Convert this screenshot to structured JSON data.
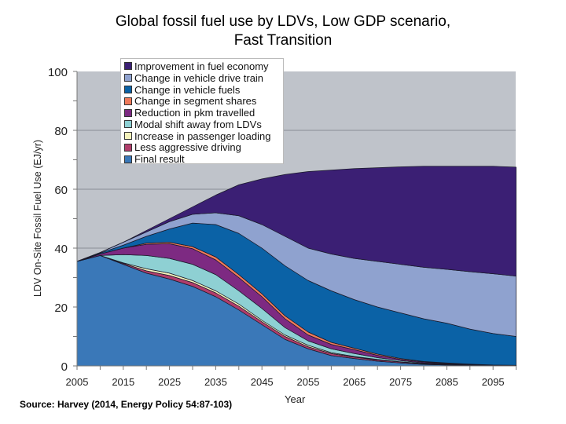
{
  "chart_data": {
    "type": "area",
    "stacked": true,
    "title": "Global fossil fuel use by LDVs, Low GDP scenario, Fast Transition",
    "title_lines": [
      "Global fossil fuel use by LDVs, Low GDP scenario,",
      "Fast Transition"
    ],
    "xlabel": "Year",
    "ylabel": "LDV On-Site Fossil Fuel Use (EJ/yr)",
    "xlim": [
      2005,
      2100
    ],
    "ylim": [
      0,
      100
    ],
    "x_ticks": [
      "2005",
      "2015",
      "2025",
      "2035",
      "2045",
      "2055",
      "2065",
      "2075",
      "2085",
      "2095"
    ],
    "y_ticks": [
      "0",
      "20",
      "40",
      "60",
      "80",
      "100"
    ],
    "grid": "horizontal",
    "legend_placement": "top-left",
    "plot_background": "#bfc3ca",
    "x": [
      2005,
      2010,
      2015,
      2020,
      2025,
      2030,
      2035,
      2040,
      2045,
      2050,
      2055,
      2060,
      2065,
      2070,
      2075,
      2080,
      2085,
      2090,
      2095,
      2100
    ],
    "series": [
      {
        "name": "Final result",
        "color": "#3a78b8",
        "values": [
          35.5,
          37.5,
          34.5,
          31.5,
          29.5,
          27,
          23.5,
          19,
          14,
          9,
          5.8,
          3.5,
          2.5,
          1.6,
          1,
          0.5,
          0.3,
          0.2,
          0.1,
          0.05
        ]
      },
      {
        "name": "Less aggressive driving",
        "color": "#b03d6b",
        "values": [
          0,
          0,
          0.3,
          0.8,
          1.2,
          1.3,
          1.3,
          1.3,
          1,
          1,
          0.7,
          0.7,
          0.5,
          0.4,
          0.3,
          0.2,
          0.2,
          0.1,
          0.1,
          0.05
        ]
      },
      {
        "name": "Increase in passenger loading",
        "color": "#f4f2bb",
        "values": [
          0,
          0,
          0.2,
          0.7,
          0.8,
          0.7,
          0.7,
          0.7,
          0.5,
          0.5,
          0.5,
          0.3,
          0.2,
          0.2,
          0.1,
          0.1,
          0.05,
          0.05,
          0.02,
          0.02
        ]
      },
      {
        "name": "Modal shift away from LDVs",
        "color": "#8ed0d3",
        "values": [
          0,
          0,
          2.8,
          4.5,
          5,
          5.5,
          5.5,
          4.5,
          4,
          2.5,
          1.5,
          1.3,
          1,
          0.6,
          0.4,
          0.2,
          0.1,
          0.07,
          0.03,
          0.02
        ]
      },
      {
        "name": "Reduction in pkm travelled",
        "color": "#7d2a82",
        "values": [
          0,
          0.5,
          2.2,
          3.8,
          5,
          5.3,
          5,
          4.5,
          4,
          3,
          2,
          1.5,
          1.3,
          0.8,
          0.4,
          0.3,
          0.15,
          0.08,
          0.05,
          0.06
        ]
      },
      {
        "name": "Change in segment shares",
        "color": "#f07a5a",
        "values": [
          0,
          0,
          0,
          0.4,
          0.5,
          0.7,
          1,
          1,
          1,
          1,
          1,
          0.7,
          0.5,
          0.4,
          0.3,
          0.2,
          0.2,
          0.1,
          0,
          0
        ]
      },
      {
        "name": "Change in vehicle fuels",
        "color": "#0b62a6",
        "values": [
          0,
          0.3,
          1,
          2.3,
          4.5,
          8,
          11,
          14,
          15.5,
          17,
          17.5,
          17.5,
          16.5,
          16,
          15.5,
          14.5,
          13.5,
          11.9,
          10.7,
          9.8
        ]
      },
      {
        "name": "Change in vehicle drive train",
        "color": "#8fa2cf",
        "values": [
          0,
          0.2,
          1,
          1.5,
          2.5,
          3,
          4,
          6,
          8,
          10,
          11,
          12.5,
          14,
          15.5,
          16.5,
          17.5,
          18.3,
          19.5,
          20.3,
          20.5
        ]
      },
      {
        "name": "Improvement in fuel economy",
        "color": "#3b1f74",
        "values": [
          0,
          0,
          0,
          0.5,
          1,
          2.5,
          6,
          10.5,
          15.5,
          21,
          26,
          28.5,
          30.5,
          31.8,
          33.1,
          34.3,
          35,
          35.8,
          36.5,
          37
        ]
      }
    ],
    "source": "Source: Harvey (2014, Energy Policy 54:87-103)"
  }
}
